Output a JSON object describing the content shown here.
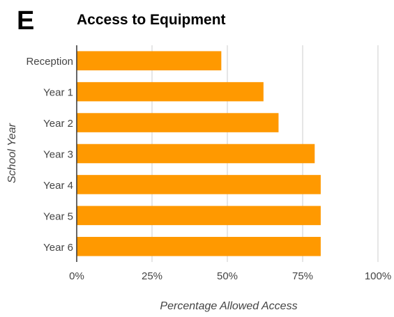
{
  "panel_letter": "E",
  "chart_data": {
    "type": "bar",
    "orientation": "horizontal",
    "title": "Access to Equipment",
    "xlabel": "Percentage Allowed Access",
    "ylabel": "School Year",
    "categories": [
      "Reception",
      "Year 1",
      "Year 2",
      "Year 3",
      "Year 4",
      "Year 5",
      "Year 6"
    ],
    "values": [
      48,
      62,
      67,
      79,
      81,
      81,
      81
    ],
    "xlim": [
      0,
      100
    ],
    "x_ticks": [
      0,
      25,
      50,
      75,
      100
    ],
    "x_tick_labels": [
      "0%",
      "25%",
      "50%",
      "75%",
      "100%"
    ],
    "grid": "vertical",
    "legend": "none",
    "colors": {
      "bar": "#FF9900",
      "grid": "#cccccc",
      "axis": "#333333",
      "text": "#444444"
    }
  }
}
